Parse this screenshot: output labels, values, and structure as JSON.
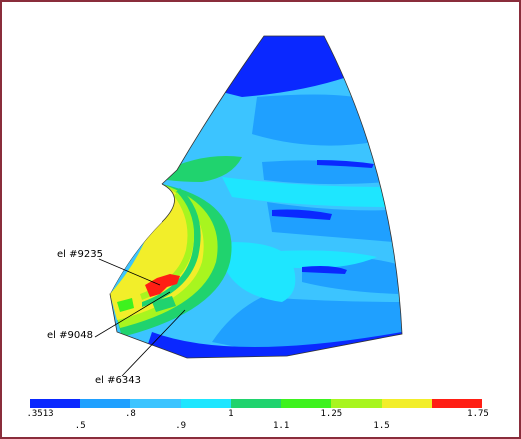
{
  "callouts": [
    "el #9235",
    "el #9048",
    "el #6343"
  ],
  "legend": {
    "colors": [
      "#0a28ff",
      "#1fa0ff",
      "#3cc4ff",
      "#1ee6ff",
      "#20d36e",
      "#3ef21e",
      "#a8f51f",
      "#f2ee2a",
      "#ff1e14"
    ],
    "upper_ticks": [
      ".3513",
      ".8",
      "1",
      "1.25",
      "1.75"
    ],
    "lower_ticks": [
      ".5",
      ".9",
      "1.1",
      "1.5"
    ]
  },
  "colors": {
    "frame": "#8a2d3b",
    "blue_dark": "#0a28ff",
    "blue": "#1fa0ff",
    "cyan_blue": "#3cc4ff",
    "cyan": "#1ee6ff",
    "green": "#20d36e",
    "yellow_green": "#a8f51f",
    "yellow": "#f2ee2a",
    "red": "#ff1e14"
  }
}
